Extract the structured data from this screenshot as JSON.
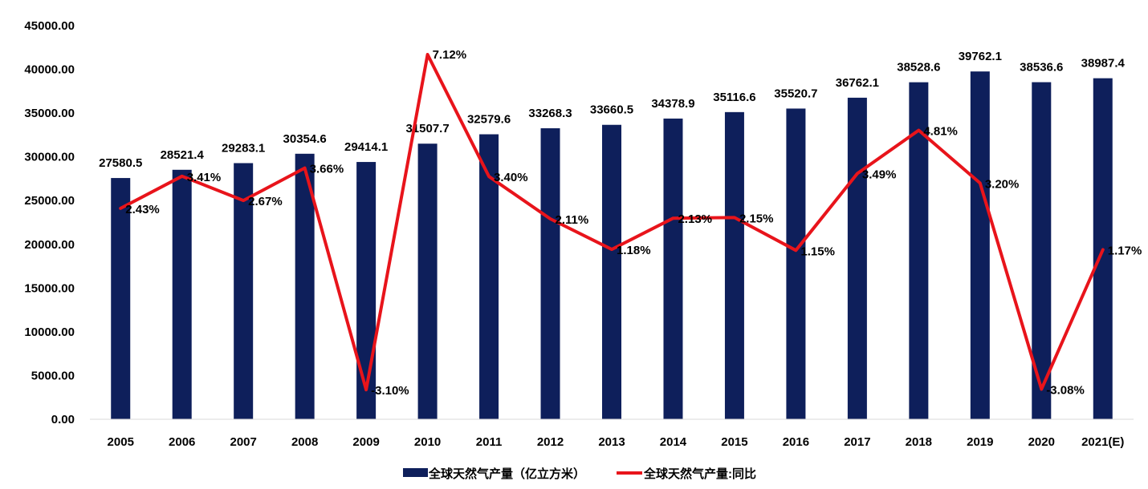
{
  "chart_data": {
    "type": "bar+line",
    "title": "",
    "categories": [
      "2005",
      "2006",
      "2007",
      "2008",
      "2009",
      "2010",
      "2011",
      "2012",
      "2013",
      "2014",
      "2015",
      "2016",
      "2017",
      "2018",
      "2019",
      "2020",
      "2021(E)"
    ],
    "series": [
      {
        "name": "全球天然气产量（亿立方米）",
        "type": "bar",
        "color": "#0e1f5b",
        "values": [
          27580.5,
          28521.4,
          29283.1,
          30354.6,
          29414.1,
          31507.7,
          32579.6,
          33268.3,
          33660.5,
          34378.9,
          35116.6,
          35520.7,
          36762.1,
          38528.6,
          39762.1,
          38536.6,
          38987.4
        ],
        "labels": [
          "27580.5",
          "28521.4",
          "29283.1",
          "30354.6",
          "29414.1",
          "31507.7",
          "32579.6",
          "33268.3",
          "33660.5",
          "34378.9",
          "35116.6",
          "35520.7",
          "36762.1",
          "38528.6",
          "39762.1",
          "38536.6",
          "38987.4"
        ]
      },
      {
        "name": "全球天然气产量:同比",
        "type": "line",
        "color": "#e8141b",
        "values": [
          2.43,
          3.41,
          2.67,
          3.66,
          -3.1,
          7.12,
          3.4,
          2.11,
          1.18,
          2.13,
          2.15,
          1.15,
          3.49,
          4.81,
          3.2,
          -3.08,
          1.17
        ],
        "labels": [
          "2.43%",
          "3.41%",
          "2.67%",
          "3.66%",
          "-3.10%",
          "7.12%",
          "3.40%",
          "2.11%",
          "1.18%",
          "2.13%",
          "2.15%",
          "1.15%",
          "3.49%",
          "4.81%",
          "3.20%",
          "-3.08%",
          "1.17%"
        ]
      }
    ],
    "y_axis": {
      "ylim": [
        0,
        45000
      ],
      "ticks": [
        "0.00",
        "5000.00",
        "10000.00",
        "15000.00",
        "20000.00",
        "25000.00",
        "30000.00",
        "35000.00",
        "40000.00",
        "45000.00"
      ],
      "tick_values": [
        0,
        5000,
        10000,
        15000,
        20000,
        25000,
        30000,
        35000,
        40000,
        45000
      ]
    },
    "y2_range": [
      -4.0,
      8.0
    ],
    "grid": false,
    "legend_position": "bottom-center"
  }
}
